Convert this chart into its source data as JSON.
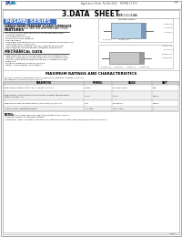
{
  "title": "3.DATA  SHEET",
  "series_title": "P6SMBJ SERIES",
  "logo_text_pan": "PAN",
  "logo_text_ku": "ku",
  "header_line": "Application Sheet  Part No.2022    P6SMBJ 13 D/U",
  "subtitle1": "SURFACE MOUNT TRANSIENT VOLTAGE SUPPRESSOR",
  "subtitle2": "VOLTAGE: 5.0 to 220  Volts  600 Watt Peak Power Pulses",
  "features_title": "FEATURES",
  "features": [
    "For surface mount applications refer to cathode band/anode.",
    "Low profile package",
    "Glass passivated junction",
    "Excellent clamping capability",
    "Low inductance",
    "Peak power dissipation typically less than 10 percent of 600W(600 W)",
    "Typical recovery: < 4 nsec (ns)",
    "High temperature soldering: 260+5/-0 seconds at terminals",
    "Plastic package has Underwriters Laboratory Flammability",
    "Classification 94V-0"
  ],
  "mech_title": "MECHANICAL DATA",
  "mech_data": [
    "Case: JEDEC DO-214AA molded plastic over passivated junction",
    "Terminals: Solderability: standard per MIL-STD-750 method 2026",
    "Polarity: Colour band denotes positive with + uniformly marked",
    "Epoxy end",
    "Standard Packaging: Quantities (2k rk) g",
    "Weight: 0.028 oz/piece, 100 pcs/pack"
  ],
  "table_title": "MAXIMUM RATINGS AND CHARACTERISTICS",
  "table_note1": "Rating at 25 functional temperature unless otherwise specified (Deviation or induction lead 100%)",
  "table_note2": "For Capacitance listed observe correct by 25%",
  "table_headers": [
    "PARAMETER",
    "SYMBOL",
    "VALUE",
    "UNIT"
  ],
  "table_rows": [
    [
      "Peak Power Dissipation at tp=1ms, T=25/250, 5.0 to 5.2",
      "P peak",
      "600(600-9 10W)",
      "Watt"
    ],
    [
      "Peak Forward Surge Current 8.3ms single half sine wave superimposed on rated load (JEDEC 1.9)",
      "I FSM",
      "100 g",
      "Ampere"
    ],
    [
      "Peak Pulse Current (maximum 600W) x (datasheet TVS) (TVS 0.1)",
      "I pp",
      "See Table 1",
      "Ampere"
    ],
    [
      "Junction/Ambient Temperature Range",
      "T J  T AMB",
      "-65 to +150",
      "C"
    ]
  ],
  "notes_title": "NOTES:",
  "notes": [
    "1. Non-repetitive current pulses, using 1 and standard-planer TypeD2 Type Fig. 2.",
    "2. Maximum ambient 2 min-base-body heat away.",
    "3. Measured at 10kHz 1 Capacitance reading variance on temperature where done, SMB-1(2022) Minimum variation resistance"
  ],
  "diode_label": "SMB(1.2D-214AA",
  "diode_note": "See note: (note) 1",
  "page_text": "Page2  /",
  "bg_color": "#ffffff",
  "outer_border_color": "#aaaaaa",
  "inner_border_color": "#aaaaaa",
  "series_bg": "#4472c4",
  "series_text": "#ffffff",
  "device_diagram_bg": "#b8d4e8",
  "diag_dim_right": [
    "0.06 (1.51)",
    "0.10 (2.55)",
    "0.02 (0.6)"
  ],
  "diag_dim_bottom": [
    "0.10 (2.65)",
    "0.085 (2.17)"
  ],
  "diag_dim2_right": [
    "0.004 (0.10)",
    "0.05 (1.27)",
    "0.085 (2.17)",
    "0.315 (8.00)"
  ],
  "diag_dim2_bottom": [
    "0.038 (0.97)",
    "0.20 (5.08)",
    "0.008 (0.2)",
    "0.165 (4.19)"
  ]
}
